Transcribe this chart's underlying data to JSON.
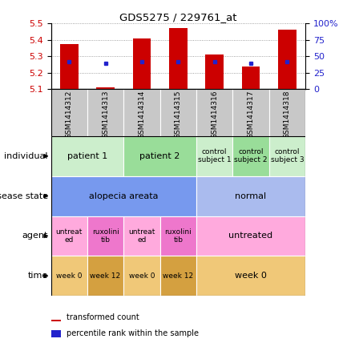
{
  "title": "GDS5275 / 229761_at",
  "samples": [
    "GSM1414312",
    "GSM1414313",
    "GSM1414314",
    "GSM1414315",
    "GSM1414316",
    "GSM1414317",
    "GSM1414318"
  ],
  "bar_values": [
    5.375,
    5.112,
    5.41,
    5.475,
    5.31,
    5.235,
    5.465
  ],
  "bar_base": 5.1,
  "blue_dot_values": [
    5.265,
    5.255,
    5.265,
    5.265,
    5.265,
    5.258,
    5.265
  ],
  "ylim": [
    5.1,
    5.5
  ],
  "y2lim": [
    0,
    100
  ],
  "yticks": [
    5.1,
    5.2,
    5.3,
    5.4,
    5.5
  ],
  "y2ticks": [
    0,
    25,
    50,
    75,
    100
  ],
  "y2ticklabels": [
    "0",
    "25",
    "50",
    "75",
    "100%"
  ],
  "bar_color": "#cc0000",
  "dot_color": "#2222cc",
  "grid_color": "#888888",
  "sample_label_bg": "#c8c8c8",
  "rows": [
    {
      "label": "individual",
      "groups": [
        {
          "text": "patient 1",
          "start": 0,
          "end": 2,
          "color": "#cceecc",
          "fontsize": 8
        },
        {
          "text": "patient 2",
          "start": 2,
          "end": 4,
          "color": "#99dd99",
          "fontsize": 8
        },
        {
          "text": "control\nsubject 1",
          "start": 4,
          "end": 5,
          "color": "#cceecc",
          "fontsize": 6.5
        },
        {
          "text": "control\nsubject 2",
          "start": 5,
          "end": 6,
          "color": "#99dd99",
          "fontsize": 6.5
        },
        {
          "text": "control\nsubject 3",
          "start": 6,
          "end": 7,
          "color": "#cceecc",
          "fontsize": 6.5
        }
      ]
    },
    {
      "label": "disease state",
      "groups": [
        {
          "text": "alopecia areata",
          "start": 0,
          "end": 4,
          "color": "#7799ee",
          "fontsize": 8
        },
        {
          "text": "normal",
          "start": 4,
          "end": 7,
          "color": "#aabbee",
          "fontsize": 8
        }
      ]
    },
    {
      "label": "agent",
      "groups": [
        {
          "text": "untreat\ned",
          "start": 0,
          "end": 1,
          "color": "#ffaadd",
          "fontsize": 6.5
        },
        {
          "text": "ruxolini\ntib",
          "start": 1,
          "end": 2,
          "color": "#ee77cc",
          "fontsize": 6.5
        },
        {
          "text": "untreat\ned",
          "start": 2,
          "end": 3,
          "color": "#ffaadd",
          "fontsize": 6.5
        },
        {
          "text": "ruxolini\ntib",
          "start": 3,
          "end": 4,
          "color": "#ee77cc",
          "fontsize": 6.5
        },
        {
          "text": "untreated",
          "start": 4,
          "end": 7,
          "color": "#ffaadd",
          "fontsize": 8
        }
      ]
    },
    {
      "label": "time",
      "groups": [
        {
          "text": "week 0",
          "start": 0,
          "end": 1,
          "color": "#f0c878",
          "fontsize": 6.5
        },
        {
          "text": "week 12",
          "start": 1,
          "end": 2,
          "color": "#d4a040",
          "fontsize": 6.5
        },
        {
          "text": "week 0",
          "start": 2,
          "end": 3,
          "color": "#f0c878",
          "fontsize": 6.5
        },
        {
          "text": "week 12",
          "start": 3,
          "end": 4,
          "color": "#d4a040",
          "fontsize": 6.5
        },
        {
          "text": "week 0",
          "start": 4,
          "end": 7,
          "color": "#f0c878",
          "fontsize": 8
        }
      ]
    }
  ],
  "legend": [
    {
      "color": "#cc0000",
      "label": "transformed count"
    },
    {
      "color": "#2222cc",
      "label": "percentile rank within the sample"
    }
  ]
}
